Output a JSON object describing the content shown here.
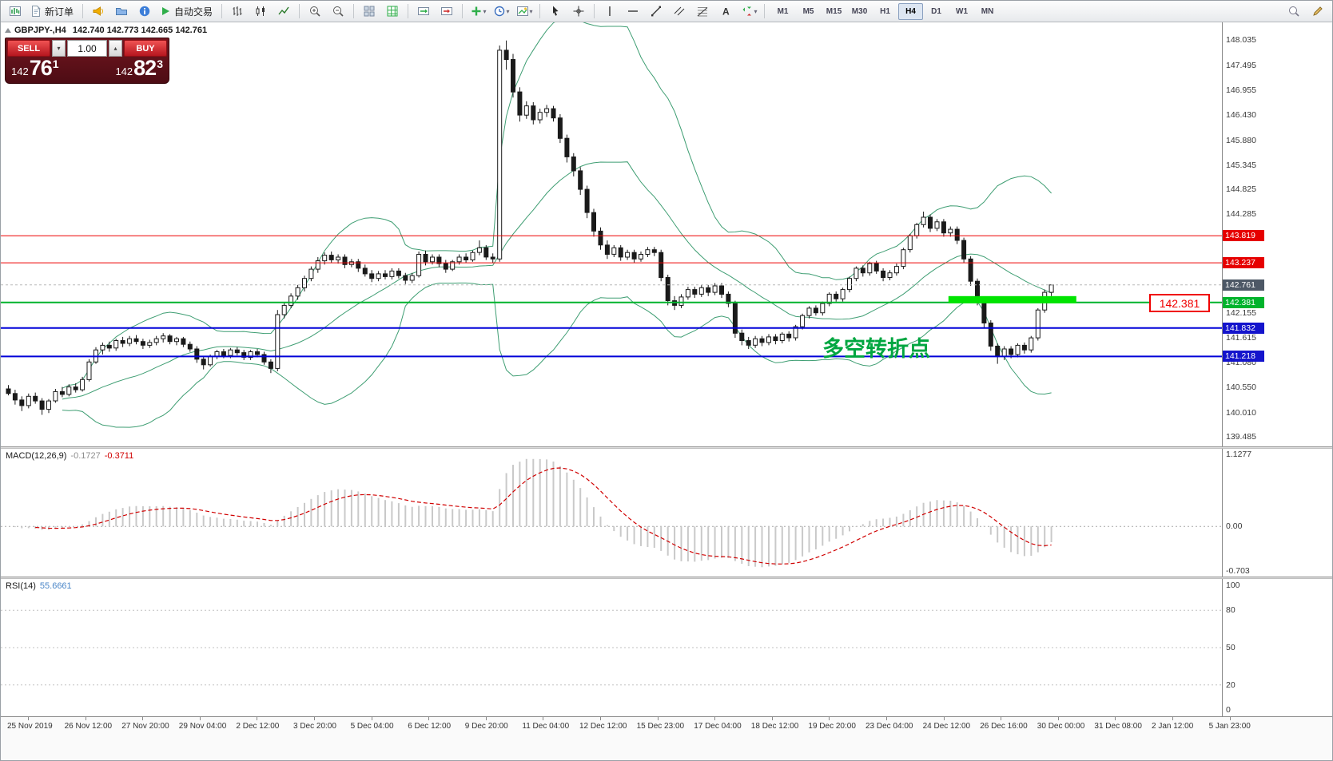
{
  "toolbar": {
    "new_order_label": "新订单",
    "autotrading_label": "自动交易",
    "timeframes": [
      "M1",
      "M5",
      "M15",
      "M30",
      "H1",
      "H4",
      "D1",
      "W1",
      "MN"
    ],
    "active_timeframe": "H4",
    "icon_names": [
      "new-chart-icon",
      "order-doc-icon",
      "megaphone-icon",
      "profiles-icon",
      "info-icon",
      "autotrading-play-icon",
      "bar-chart-icon",
      "candlestick-chart-icon",
      "line-chart-icon",
      "zoom-in-icon",
      "zoom-out-icon",
      "tile-windows-icon",
      "arrange-grid-icon",
      "auto-scroll-icon",
      "chart-shift-icon",
      "add-indicator-icon",
      "period-clock-icon",
      "templates-icon",
      "cursor-icon",
      "crosshair-icon",
      "vertical-line-icon",
      "horizontal-line-icon",
      "trendline-icon",
      "channel-icon",
      "fibonacci-icon",
      "text-tool-icon",
      "arrows-icon",
      "search-icon",
      "pencil-icon"
    ]
  },
  "chart": {
    "symbol_label": "GBPJPY-,H4",
    "ohlc": "142.740 142.773 142.665 142.761",
    "annotation": "多空转折点",
    "annotation_color": "#00a640",
    "price_label_box": "142.381",
    "y_ticks": [
      "148.035",
      "147.495",
      "146.955",
      "146.430",
      "145.880",
      "145.345",
      "144.825",
      "144.285",
      "142.155",
      "141.615",
      "141.080",
      "140.550",
      "140.010",
      "139.485"
    ],
    "price_tags": [
      {
        "value": "143.819",
        "bg": "#e60000"
      },
      {
        "value": "143.237",
        "bg": "#e60000"
      },
      {
        "value": "142.761",
        "bg": "#4d5866"
      },
      {
        "value": "142.381",
        "bg": "#00b32c"
      },
      {
        "value": "141.832",
        "bg": "#1414cc"
      },
      {
        "value": "141.218",
        "bg": "#1414cc"
      }
    ],
    "colors": {
      "candle_up": "#ffffff",
      "candle_down": "#1a1a1a",
      "candle_border": "#1a1a1a",
      "bollinger": "#3f9e73",
      "resistance_line": "#ee0000",
      "support_line": "#0000d8",
      "pivot_line": "#00b32c",
      "band_highlight": "#00e400",
      "macd_histogram": "#c9c9c9",
      "macd_signal": "#d00000",
      "rsi_line": "#4a86c8"
    }
  },
  "trade": {
    "sell_label": "SELL",
    "buy_label": "BUY",
    "volume": "1.00",
    "sell_small": "142",
    "sell_big": "76",
    "sell_sup": "1",
    "buy_small": "142",
    "buy_big": "82",
    "buy_sup": "3"
  },
  "macd": {
    "title": "MACD(12,26,9)",
    "value1": "-0.1727",
    "value2": "-0.3711",
    "scale_top": "1.1277",
    "scale_zero": "0.00",
    "scale_bottom": "-0.703"
  },
  "rsi": {
    "title": "RSI(14)",
    "value": "55.6661",
    "scale": [
      "100",
      "80",
      "50",
      "20",
      "0"
    ],
    "levels": [
      80,
      50,
      20
    ]
  },
  "time_axis": [
    "25 Nov 2019",
    "26 Nov 12:00",
    "27 Nov 20:00",
    "29 Nov 04:00",
    "2 Dec 12:00",
    "3 Dec 20:00",
    "5 Dec 04:00",
    "6 Dec 12:00",
    "9 Dec 20:00",
    "11 Dec 04:00",
    "12 Dec 12:00",
    "15 Dec 23:00",
    "17 Dec 04:00",
    "18 Dec 12:00",
    "19 Dec 20:00",
    "23 Dec 04:00",
    "24 Dec 12:00",
    "26 Dec 16:00",
    "30 Dec 00:00",
    "31 Dec 08:00",
    "2 Jan 12:00",
    "5 Jan 23:00"
  ],
  "chart_data": {
    "type": "candlestick",
    "symbol": "GBPJPY-",
    "timeframe": "H4",
    "y_range": [
      139.28,
      148.42
    ],
    "current_price": 142.761,
    "bid": 142.761,
    "ask": 142.823,
    "indicators": [
      {
        "name": "Bollinger Bands",
        "period": 20,
        "deviation": 2
      },
      {
        "name": "MACD",
        "fast": 12,
        "slow": 26,
        "signal": 9,
        "values": [
          -0.1727,
          -0.3711
        ]
      },
      {
        "name": "RSI",
        "period": 14,
        "value": 55.6661
      }
    ],
    "hlines": [
      {
        "price": 143.819,
        "color": "#ee0000",
        "width": 1
      },
      {
        "price": 143.237,
        "color": "#ee0000",
        "width": 1
      },
      {
        "price": 142.381,
        "color": "#00b32c",
        "width": 2
      },
      {
        "price": 141.832,
        "color": "#0000d8",
        "width": 2
      },
      {
        "price": 141.218,
        "color": "#0000d8",
        "width": 2
      }
    ],
    "green_band": {
      "price": 142.381,
      "from_bar": 140,
      "to_bar": 159,
      "color": "#00e400",
      "thickness": 9
    },
    "candles": [
      [
        140.52,
        140.6,
        140.38,
        140.42
      ],
      [
        140.42,
        140.5,
        140.18,
        140.28
      ],
      [
        140.28,
        140.36,
        140.04,
        140.16
      ],
      [
        140.16,
        140.42,
        140.1,
        140.36
      ],
      [
        140.36,
        140.44,
        140.2,
        140.26
      ],
      [
        140.26,
        140.32,
        139.96,
        140.08
      ],
      [
        140.08,
        140.3,
        140.0,
        140.26
      ],
      [
        140.26,
        140.52,
        140.22,
        140.46
      ],
      [
        140.46,
        140.56,
        140.34,
        140.4
      ],
      [
        140.4,
        140.62,
        140.36,
        140.56
      ],
      [
        140.56,
        140.64,
        140.44,
        140.5
      ],
      [
        140.5,
        140.78,
        140.46,
        140.72
      ],
      [
        140.72,
        141.16,
        140.68,
        141.1
      ],
      [
        141.1,
        141.42,
        141.06,
        141.36
      ],
      [
        141.36,
        141.52,
        141.26,
        141.46
      ],
      [
        141.46,
        141.54,
        141.32,
        141.4
      ],
      [
        141.4,
        141.6,
        141.34,
        141.56
      ],
      [
        141.56,
        141.64,
        141.42,
        141.5
      ],
      [
        141.5,
        141.66,
        141.44,
        141.6
      ],
      [
        141.6,
        141.68,
        141.48,
        141.54
      ],
      [
        141.54,
        141.6,
        141.38,
        141.46
      ],
      [
        141.46,
        141.58,
        141.4,
        141.52
      ],
      [
        141.52,
        141.66,
        141.46,
        141.6
      ],
      [
        141.6,
        141.72,
        141.52,
        141.66
      ],
      [
        141.66,
        141.7,
        141.48,
        141.54
      ],
      [
        141.54,
        141.64,
        141.46,
        141.6
      ],
      [
        141.6,
        141.64,
        141.42,
        141.48
      ],
      [
        141.48,
        141.54,
        141.32,
        141.38
      ],
      [
        141.38,
        141.44,
        141.08,
        141.16
      ],
      [
        141.16,
        141.22,
        140.94,
        141.04
      ],
      [
        141.04,
        141.26,
        141.0,
        141.22
      ],
      [
        141.22,
        141.36,
        141.16,
        141.32
      ],
      [
        141.32,
        141.38,
        141.18,
        141.24
      ],
      [
        141.24,
        141.4,
        141.18,
        141.36
      ],
      [
        141.36,
        141.42,
        141.24,
        141.3
      ],
      [
        141.3,
        141.36,
        141.14,
        141.2
      ],
      [
        141.2,
        141.36,
        141.14,
        141.32
      ],
      [
        141.32,
        141.38,
        141.2,
        141.26
      ],
      [
        141.26,
        141.32,
        141.04,
        141.1
      ],
      [
        141.1,
        141.16,
        140.86,
        140.96
      ],
      [
        140.96,
        142.22,
        140.9,
        142.12
      ],
      [
        142.12,
        142.38,
        142.04,
        142.32
      ],
      [
        142.32,
        142.58,
        142.26,
        142.52
      ],
      [
        142.52,
        142.76,
        142.44,
        142.7
      ],
      [
        142.7,
        142.96,
        142.62,
        142.9
      ],
      [
        142.9,
        143.16,
        142.84,
        143.1
      ],
      [
        143.1,
        143.36,
        143.02,
        143.28
      ],
      [
        143.28,
        143.46,
        143.2,
        143.4
      ],
      [
        143.4,
        143.48,
        143.24,
        143.3
      ],
      [
        143.3,
        143.42,
        143.22,
        143.36
      ],
      [
        143.36,
        143.42,
        143.12,
        143.2
      ],
      [
        143.2,
        143.32,
        143.14,
        143.26
      ],
      [
        143.26,
        143.32,
        143.04,
        143.12
      ],
      [
        143.12,
        143.2,
        142.94,
        143.0
      ],
      [
        143.0,
        143.08,
        142.82,
        142.9
      ],
      [
        142.9,
        143.06,
        142.84,
        143.0
      ],
      [
        143.0,
        143.08,
        142.88,
        142.94
      ],
      [
        142.94,
        143.12,
        142.88,
        143.06
      ],
      [
        143.06,
        143.12,
        142.9,
        142.96
      ],
      [
        142.96,
        143.02,
        142.78,
        142.86
      ],
      [
        142.86,
        143.02,
        142.8,
        142.96
      ],
      [
        142.96,
        143.48,
        142.92,
        143.42
      ],
      [
        143.42,
        143.5,
        143.18,
        143.26
      ],
      [
        143.26,
        143.42,
        143.2,
        143.36
      ],
      [
        143.36,
        143.42,
        143.14,
        143.22
      ],
      [
        143.22,
        143.3,
        143.02,
        143.1
      ],
      [
        143.1,
        143.3,
        143.06,
        143.26
      ],
      [
        143.26,
        143.42,
        143.2,
        143.36
      ],
      [
        143.36,
        143.44,
        143.24,
        143.3
      ],
      [
        143.3,
        143.5,
        143.26,
        143.46
      ],
      [
        143.46,
        143.72,
        143.4,
        143.56
      ],
      [
        143.56,
        143.62,
        143.3,
        143.36
      ],
      [
        143.36,
        143.44,
        143.24,
        143.32
      ],
      [
        143.32,
        147.92,
        143.26,
        147.82
      ],
      [
        147.82,
        148.03,
        147.4,
        147.62
      ],
      [
        147.62,
        147.74,
        146.8,
        146.92
      ],
      [
        146.92,
        147.02,
        146.28,
        146.42
      ],
      [
        146.42,
        146.72,
        146.34,
        146.62
      ],
      [
        146.62,
        146.7,
        146.22,
        146.32
      ],
      [
        146.32,
        146.56,
        146.24,
        146.48
      ],
      [
        146.48,
        146.64,
        146.38,
        146.56
      ],
      [
        146.56,
        146.62,
        146.28,
        146.36
      ],
      [
        146.36,
        146.44,
        145.82,
        145.92
      ],
      [
        145.92,
        146.0,
        145.4,
        145.52
      ],
      [
        145.52,
        145.6,
        145.1,
        145.22
      ],
      [
        145.22,
        145.3,
        144.7,
        144.82
      ],
      [
        144.82,
        144.9,
        144.2,
        144.32
      ],
      [
        144.32,
        144.4,
        143.8,
        143.92
      ],
      [
        143.92,
        144.0,
        143.52,
        143.62
      ],
      [
        143.62,
        143.72,
        143.32,
        143.42
      ],
      [
        143.42,
        143.62,
        143.36,
        143.56
      ],
      [
        143.56,
        143.62,
        143.28,
        143.36
      ],
      [
        143.36,
        143.52,
        143.3,
        143.46
      ],
      [
        143.46,
        143.52,
        143.24,
        143.32
      ],
      [
        143.32,
        143.48,
        143.26,
        143.42
      ],
      [
        143.42,
        143.58,
        143.36,
        143.52
      ],
      [
        143.52,
        143.58,
        143.38,
        143.46
      ],
      [
        143.46,
        143.52,
        142.84,
        142.92
      ],
      [
        142.92,
        142.98,
        142.32,
        142.42
      ],
      [
        142.42,
        142.52,
        142.22,
        142.32
      ],
      [
        142.32,
        142.56,
        142.26,
        142.5
      ],
      [
        142.5,
        142.72,
        142.44,
        142.66
      ],
      [
        142.66,
        142.72,
        142.48,
        142.56
      ],
      [
        142.56,
        142.76,
        142.5,
        142.7
      ],
      [
        142.7,
        142.76,
        142.52,
        142.6
      ],
      [
        142.6,
        142.8,
        142.54,
        142.74
      ],
      [
        142.74,
        142.8,
        142.48,
        142.56
      ],
      [
        142.56,
        142.62,
        142.28,
        142.36
      ],
      [
        142.36,
        142.42,
        141.62,
        141.72
      ],
      [
        141.72,
        141.8,
        141.46,
        141.56
      ],
      [
        141.56,
        141.64,
        141.38,
        141.46
      ],
      [
        141.46,
        141.66,
        141.4,
        141.6
      ],
      [
        141.6,
        141.66,
        141.44,
        141.52
      ],
      [
        141.52,
        141.7,
        141.46,
        141.64
      ],
      [
        141.64,
        141.7,
        141.48,
        141.56
      ],
      [
        141.56,
        141.74,
        141.5,
        141.7
      ],
      [
        141.7,
        141.76,
        141.54,
        141.62
      ],
      [
        141.62,
        141.9,
        141.56,
        141.86
      ],
      [
        141.86,
        142.14,
        141.8,
        142.1
      ],
      [
        142.1,
        142.3,
        142.04,
        142.26
      ],
      [
        142.26,
        142.32,
        142.1,
        142.16
      ],
      [
        142.16,
        142.4,
        142.1,
        142.36
      ],
      [
        142.36,
        142.6,
        142.3,
        142.56
      ],
      [
        142.56,
        142.62,
        142.4,
        142.46
      ],
      [
        142.46,
        142.7,
        142.4,
        142.66
      ],
      [
        142.66,
        142.94,
        142.6,
        142.9
      ],
      [
        142.9,
        143.16,
        142.84,
        143.12
      ],
      [
        143.12,
        143.18,
        142.94,
        143.02
      ],
      [
        143.02,
        143.26,
        142.96,
        143.22
      ],
      [
        143.22,
        143.28,
        143.0,
        143.06
      ],
      [
        143.06,
        143.12,
        142.84,
        142.92
      ],
      [
        142.92,
        143.08,
        142.86,
        143.02
      ],
      [
        143.02,
        143.22,
        142.96,
        143.16
      ],
      [
        143.16,
        143.56,
        143.1,
        143.52
      ],
      [
        143.52,
        143.86,
        143.46,
        143.82
      ],
      [
        143.82,
        144.1,
        143.76,
        144.06
      ],
      [
        144.06,
        144.34,
        144.0,
        144.22
      ],
      [
        144.22,
        144.28,
        143.9,
        143.98
      ],
      [
        143.98,
        144.18,
        143.92,
        144.12
      ],
      [
        144.12,
        144.18,
        143.8,
        143.88
      ],
      [
        143.88,
        144.02,
        143.8,
        143.96
      ],
      [
        143.96,
        144.02,
        143.64,
        143.72
      ],
      [
        143.72,
        143.78,
        143.24,
        143.32
      ],
      [
        143.32,
        143.38,
        142.74,
        142.84
      ],
      [
        142.84,
        142.9,
        142.32,
        142.42
      ],
      [
        142.42,
        142.48,
        141.84,
        141.94
      ],
      [
        141.94,
        142.0,
        141.34,
        141.44
      ],
      [
        141.44,
        141.5,
        141.06,
        141.22
      ],
      [
        141.22,
        141.44,
        141.14,
        141.38
      ],
      [
        141.38,
        141.44,
        141.18,
        141.26
      ],
      [
        141.26,
        141.5,
        141.2,
        141.46
      ],
      [
        141.46,
        141.52,
        141.28,
        141.36
      ],
      [
        141.36,
        141.66,
        141.3,
        141.62
      ],
      [
        141.62,
        142.26,
        141.56,
        142.22
      ],
      [
        142.22,
        142.66,
        142.16,
        142.6
      ],
      [
        142.6,
        142.77,
        142.52,
        142.76
      ]
    ]
  }
}
